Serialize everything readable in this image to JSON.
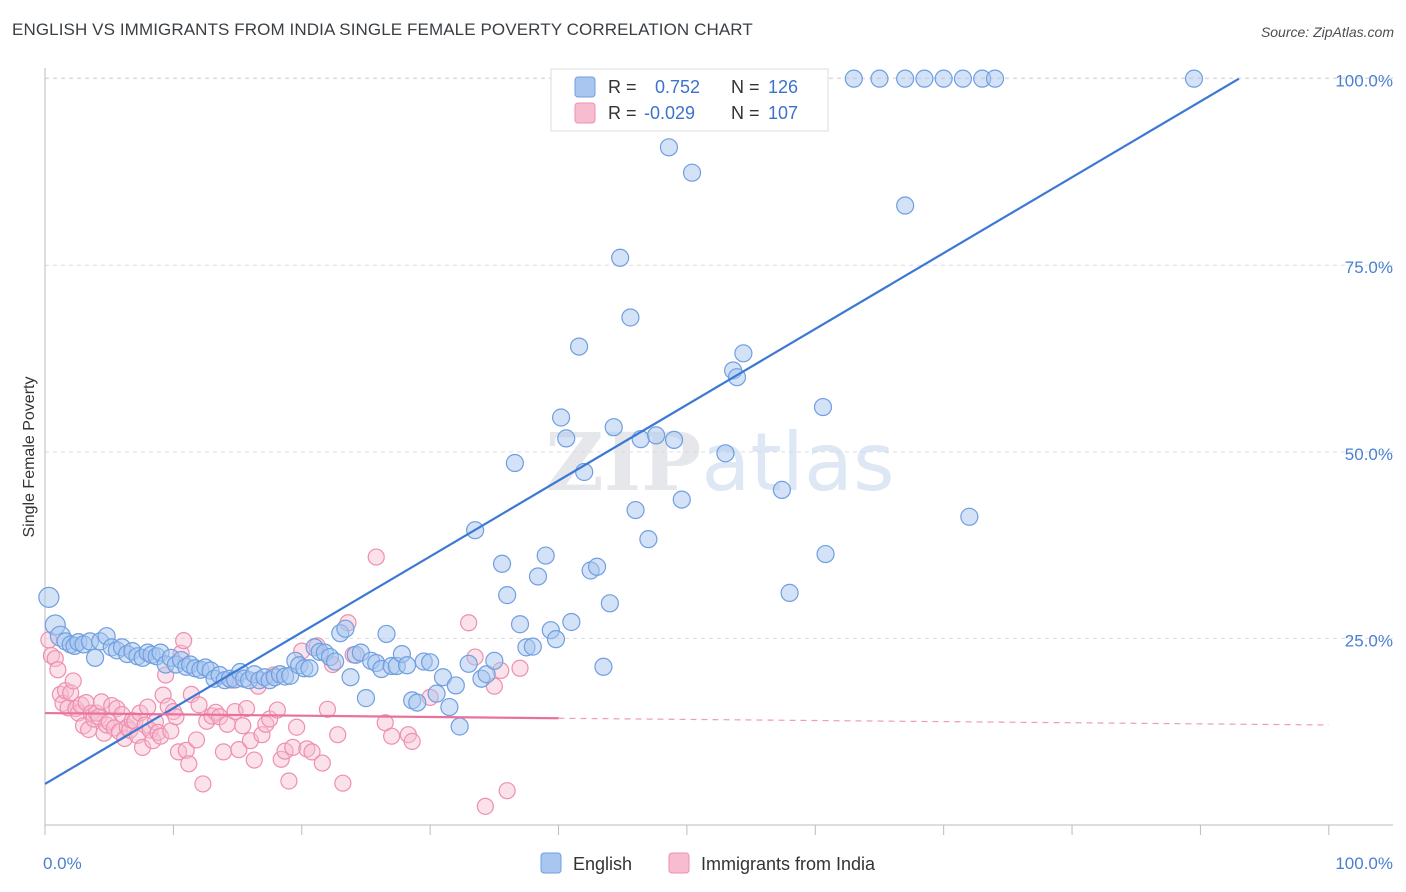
{
  "title": "ENGLISH VS IMMIGRANTS FROM INDIA SINGLE FEMALE POVERTY CORRELATION CHART",
  "source": "Source: ZipAtlas.com",
  "watermark": "ZIPatlas",
  "colors": {
    "english_fill": "#a8c6ef",
    "english_stroke": "#6f9fe0",
    "english_line": "#3a78d4",
    "india_fill": "#f7bcd0",
    "india_stroke": "#ee8fb0",
    "india_line": "#e9729c",
    "tick_text": "#4a7fd0",
    "grid": "#dddddd"
  },
  "legend": {
    "rows": [
      {
        "r_label": "R =",
        "r_value": "0.752",
        "n_label": "N =",
        "n_value": "126"
      },
      {
        "r_label": "R =",
        "r_value": "-0.029",
        "n_label": "N =",
        "n_value": "107"
      }
    ]
  },
  "chart_data": {
    "type": "scatter",
    "xlabel": "",
    "ylabel": "Single Female Poverty",
    "xlim": [
      0,
      105
    ],
    "ylim": [
      0,
      102.5
    ],
    "x_tick_labels": {
      "left": "0.0%",
      "right": "100.0%"
    },
    "y_ticks": [
      {
        "value": 25,
        "label": "25.0%"
      },
      {
        "value": 50,
        "label": "50.0%"
      },
      {
        "value": 75,
        "label": "75.0%"
      },
      {
        "value": 100,
        "label": "100.0%"
      }
    ],
    "grid": "horizontal dashed",
    "legend_position": "top-center",
    "series": [
      {
        "name": "English",
        "trend": {
          "x": [
            0,
            93
          ],
          "y": [
            5.5,
            100.0
          ]
        },
        "points": [
          [
            0.3,
            30.5
          ],
          [
            0.8,
            26.8
          ],
          [
            1.2,
            25.3
          ],
          [
            1.6,
            24.6
          ],
          [
            2.0,
            24.2
          ],
          [
            2.3,
            24.0
          ],
          [
            2.6,
            24.5
          ],
          [
            3.0,
            24.2
          ],
          [
            3.5,
            24.6
          ],
          [
            3.9,
            22.4
          ],
          [
            4.3,
            24.6
          ],
          [
            4.8,
            25.3
          ],
          [
            5.2,
            23.8
          ],
          [
            5.6,
            23.4
          ],
          [
            6.0,
            23.8
          ],
          [
            6.4,
            22.9
          ],
          [
            6.8,
            23.3
          ],
          [
            7.2,
            22.6
          ],
          [
            7.6,
            22.4
          ],
          [
            8.0,
            23.1
          ],
          [
            8.3,
            22.8
          ],
          [
            8.7,
            22.6
          ],
          [
            9.0,
            23.1
          ],
          [
            9.4,
            21.5
          ],
          [
            9.8,
            22.4
          ],
          [
            10.2,
            21.5
          ],
          [
            10.6,
            22.1
          ],
          [
            11.0,
            21.2
          ],
          [
            11.3,
            21.5
          ],
          [
            11.7,
            21.0
          ],
          [
            12.1,
            20.8
          ],
          [
            12.5,
            21.1
          ],
          [
            12.9,
            20.7
          ],
          [
            13.2,
            19.6
          ],
          [
            13.6,
            20.1
          ],
          [
            14.0,
            19.4
          ],
          [
            14.4,
            19.6
          ],
          [
            14.8,
            19.5
          ],
          [
            15.2,
            20.5
          ],
          [
            15.5,
            19.6
          ],
          [
            15.9,
            19.4
          ],
          [
            16.3,
            20.2
          ],
          [
            16.7,
            19.4
          ],
          [
            17.1,
            19.8
          ],
          [
            17.5,
            19.4
          ],
          [
            17.9,
            19.8
          ],
          [
            18.3,
            20.2
          ],
          [
            18.7,
            19.9
          ],
          [
            19.1,
            20.0
          ],
          [
            19.5,
            22.0
          ],
          [
            19.8,
            21.4
          ],
          [
            20.2,
            21.0
          ],
          [
            20.6,
            21.0
          ],
          [
            21.0,
            23.8
          ],
          [
            21.4,
            23.2
          ],
          [
            21.8,
            23.1
          ],
          [
            22.2,
            22.5
          ],
          [
            22.6,
            21.9
          ],
          [
            23.0,
            25.7
          ],
          [
            23.4,
            26.3
          ],
          [
            23.8,
            19.8
          ],
          [
            24.2,
            22.8
          ],
          [
            24.6,
            23.1
          ],
          [
            25.0,
            17.0
          ],
          [
            25.4,
            22.0
          ],
          [
            25.8,
            21.7
          ],
          [
            26.2,
            20.9
          ],
          [
            26.6,
            25.6
          ],
          [
            27.0,
            21.3
          ],
          [
            27.4,
            21.3
          ],
          [
            27.8,
            22.9
          ],
          [
            28.2,
            21.4
          ],
          [
            28.6,
            16.7
          ],
          [
            29.0,
            16.4
          ],
          [
            29.5,
            21.9
          ],
          [
            30.0,
            21.8
          ],
          [
            30.5,
            17.6
          ],
          [
            31.0,
            19.8
          ],
          [
            31.5,
            15.8
          ],
          [
            32.0,
            18.7
          ],
          [
            32.3,
            13.2
          ],
          [
            33.0,
            21.6
          ],
          [
            33.5,
            39.5
          ],
          [
            34.0,
            19.6
          ],
          [
            34.4,
            20.2
          ],
          [
            35.0,
            22.0
          ],
          [
            35.6,
            35.0
          ],
          [
            36.0,
            30.8
          ],
          [
            36.6,
            48.5
          ],
          [
            37.0,
            26.9
          ],
          [
            37.5,
            23.8
          ],
          [
            38.0,
            23.9
          ],
          [
            38.4,
            33.3
          ],
          [
            39.0,
            36.1
          ],
          [
            39.4,
            26.1
          ],
          [
            39.8,
            24.9
          ],
          [
            40.2,
            54.6
          ],
          [
            40.6,
            51.8
          ],
          [
            41.0,
            27.2
          ],
          [
            41.6,
            64.1
          ],
          [
            42.0,
            47.3
          ],
          [
            42.5,
            34.1
          ],
          [
            43.0,
            34.6
          ],
          [
            43.5,
            21.2
          ],
          [
            44.0,
            29.7
          ],
          [
            44.3,
            53.3
          ],
          [
            44.8,
            76.0
          ],
          [
            45.6,
            68.0
          ],
          [
            46.0,
            42.2
          ],
          [
            46.4,
            51.7
          ],
          [
            47.0,
            38.3
          ],
          [
            47.6,
            52.2
          ],
          [
            48.6,
            90.8
          ],
          [
            49.0,
            51.6
          ],
          [
            49.6,
            43.6
          ],
          [
            50.4,
            87.4
          ],
          [
            53.0,
            49.8
          ],
          [
            53.6,
            60.9
          ],
          [
            53.9,
            60.0
          ],
          [
            54.4,
            63.2
          ],
          [
            57.4,
            44.9
          ],
          [
            58.0,
            31.1
          ],
          [
            60.6,
            56.0
          ],
          [
            60.8,
            36.3
          ],
          [
            67.0,
            83.0
          ],
          [
            72.0,
            41.3
          ]
        ],
        "top_cluster_x": [
          54,
          55.5,
          56.5,
          57.5,
          63,
          65,
          67,
          68.5,
          70,
          71.5,
          73,
          74,
          89.5
        ]
      },
      {
        "name": "Immigrants from India",
        "trend": {
          "x": [
            0,
            40
          ],
          "y": [
            15.0,
            14.3
          ]
        },
        "trend_dashed": {
          "x": [
            40,
            100
          ],
          "y": [
            14.3,
            13.4
          ]
        },
        "points": [
          [
            0.3,
            24.8
          ],
          [
            0.5,
            22.7
          ],
          [
            0.8,
            22.3
          ],
          [
            1.0,
            20.8
          ],
          [
            1.2,
            17.5
          ],
          [
            1.4,
            16.3
          ],
          [
            1.6,
            18.0
          ],
          [
            1.8,
            15.7
          ],
          [
            2.0,
            17.7
          ],
          [
            2.2,
            19.3
          ],
          [
            2.4,
            15.6
          ],
          [
            2.6,
            15.0
          ],
          [
            2.8,
            16.1
          ],
          [
            3.0,
            13.3
          ],
          [
            3.2,
            16.4
          ],
          [
            3.4,
            12.8
          ],
          [
            3.6,
            15.0
          ],
          [
            3.8,
            14.2
          ],
          [
            4.0,
            15.0
          ],
          [
            4.2,
            14.5
          ],
          [
            4.4,
            16.5
          ],
          [
            4.6,
            12.3
          ],
          [
            4.8,
            13.4
          ],
          [
            5.0,
            13.8
          ],
          [
            5.2,
            16.0
          ],
          [
            5.4,
            13.0
          ],
          [
            5.6,
            15.6
          ],
          [
            5.8,
            12.5
          ],
          [
            6.0,
            14.8
          ],
          [
            6.2,
            11.6
          ],
          [
            6.4,
            13.1
          ],
          [
            6.6,
            12.7
          ],
          [
            6.8,
            14.0
          ],
          [
            7.0,
            13.9
          ],
          [
            7.2,
            12.0
          ],
          [
            7.4,
            15.0
          ],
          [
            7.6,
            10.4
          ],
          [
            7.8,
            13.4
          ],
          [
            8.0,
            15.8
          ],
          [
            8.2,
            12.7
          ],
          [
            8.4,
            11.3
          ],
          [
            8.6,
            13.8
          ],
          [
            8.8,
            12.4
          ],
          [
            9.0,
            11.9
          ],
          [
            9.2,
            17.4
          ],
          [
            9.4,
            20.1
          ],
          [
            9.6,
            15.9
          ],
          [
            9.8,
            12.6
          ],
          [
            10.0,
            15.2
          ],
          [
            10.2,
            14.5
          ],
          [
            10.4,
            9.8
          ],
          [
            10.6,
            23.0
          ],
          [
            10.8,
            24.7
          ],
          [
            11.0,
            10.0
          ],
          [
            11.2,
            8.2
          ],
          [
            11.4,
            17.5
          ],
          [
            11.8,
            11.4
          ],
          [
            12.0,
            16.1
          ],
          [
            12.3,
            5.5
          ],
          [
            12.6,
            13.9
          ],
          [
            13.0,
            14.6
          ],
          [
            13.3,
            15.1
          ],
          [
            13.6,
            14.5
          ],
          [
            13.9,
            9.8
          ],
          [
            14.2,
            13.5
          ],
          [
            14.5,
            19.4
          ],
          [
            14.8,
            15.2
          ],
          [
            15.1,
            10.1
          ],
          [
            15.4,
            13.3
          ],
          [
            15.7,
            15.6
          ],
          [
            16.0,
            11.3
          ],
          [
            16.3,
            8.7
          ],
          [
            16.6,
            18.6
          ],
          [
            16.9,
            12.1
          ],
          [
            17.2,
            13.5
          ],
          [
            17.5,
            14.2
          ],
          [
            17.8,
            20.1
          ],
          [
            18.1,
            15.4
          ],
          [
            18.4,
            8.8
          ],
          [
            18.7,
            9.9
          ],
          [
            19.0,
            5.9
          ],
          [
            19.3,
            10.4
          ],
          [
            19.6,
            13.1
          ],
          [
            20.0,
            23.3
          ],
          [
            20.4,
            10.2
          ],
          [
            20.8,
            9.8
          ],
          [
            21.2,
            24.0
          ],
          [
            21.6,
            8.3
          ],
          [
            22.0,
            15.5
          ],
          [
            22.4,
            21.5
          ],
          [
            22.8,
            12.1
          ],
          [
            23.2,
            5.6
          ],
          [
            23.6,
            27.1
          ],
          [
            24.0,
            22.8
          ],
          [
            25.8,
            35.9
          ],
          [
            26.5,
            13.7
          ],
          [
            27.0,
            11.9
          ],
          [
            28.3,
            12.1
          ],
          [
            28.6,
            11.2
          ],
          [
            30.0,
            17.1
          ],
          [
            33.0,
            27.1
          ],
          [
            33.5,
            22.5
          ],
          [
            34.3,
            2.5
          ],
          [
            35.0,
            18.6
          ],
          [
            35.5,
            20.7
          ],
          [
            36.0,
            4.6
          ],
          [
            37.0,
            21.0
          ]
        ]
      }
    ]
  },
  "bottom_legend": [
    {
      "label": "English"
    },
    {
      "label": "Immigrants from India"
    }
  ]
}
